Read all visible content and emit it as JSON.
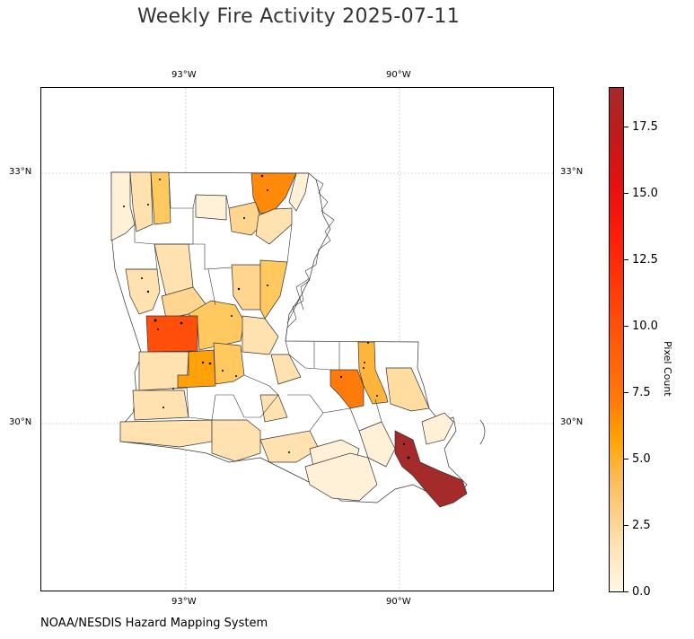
{
  "title": "Weekly Fire Activity 2025-07-11",
  "credit": "NOAA/NESDIS Hazard Mapping System",
  "map": {
    "lon_ticks_top": [
      "93°W",
      "90°W"
    ],
    "lon_ticks_bottom": [
      "93°W",
      "90°W"
    ],
    "lat_ticks_left": [
      "33°N",
      "30°N"
    ],
    "lat_ticks_right": [
      "33°N",
      "30°N"
    ],
    "gridlines": true,
    "region": "Louisiana parishes"
  },
  "colorbar": {
    "label": "Pixel Count",
    "ticks": [
      "0.0",
      "2.5",
      "5.0",
      "7.5",
      "10.0",
      "12.5",
      "15.0",
      "17.5"
    ],
    "range": [
      0,
      19
    ],
    "colors": [
      "#fff8e6",
      "#ffdd9e",
      "#ffa500",
      "#ff7a0a",
      "#ff1e0a",
      "#a52a2a"
    ]
  }
}
